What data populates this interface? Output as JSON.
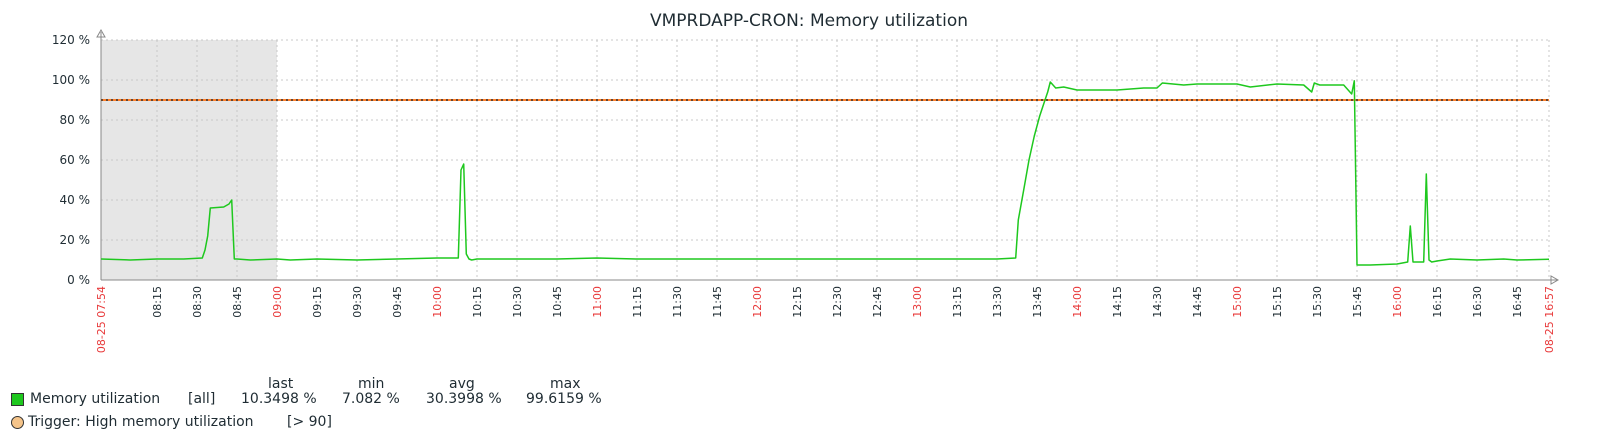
{
  "colors": {
    "series": "#1ec81e",
    "trigger_fill": "#f5c48a",
    "trigger_line": "#ff7f2a",
    "work_period_shade": "#e6e6e6",
    "grid": "#c8c8c8",
    "axis": "#888888",
    "tick_text": "#1f2c33",
    "highlight_tick": "#e8393a"
  },
  "chart_data": {
    "type": "line",
    "title": "VMPRDAPP-CRON: Memory utilization",
    "y_unit": "%",
    "ylim": [
      0,
      120
    ],
    "yticks": [
      0,
      20,
      40,
      60,
      80,
      100,
      120
    ],
    "ytick_labels": [
      "0 %",
      "20 %",
      "40 %",
      "60 %",
      "80 %",
      "100 %",
      "120 %"
    ],
    "xlim": [
      "07:54",
      "16:57"
    ],
    "x_start_label": "08-25 07:54",
    "x_end_label": "08-25 16:57",
    "xticks": [
      "08:15",
      "08:30",
      "08:45",
      "09:00",
      "09:15",
      "09:30",
      "09:45",
      "10:00",
      "10:15",
      "10:30",
      "10:45",
      "11:00",
      "11:15",
      "11:30",
      "11:45",
      "12:00",
      "12:15",
      "12:30",
      "12:45",
      "13:00",
      "13:15",
      "13:30",
      "13:45",
      "14:00",
      "14:15",
      "14:30",
      "14:45",
      "15:00",
      "15:15",
      "15:30",
      "15:45",
      "16:00",
      "16:15",
      "16:30",
      "16:45"
    ],
    "highlight_ticks": [
      "09:00",
      "10:00",
      "11:00",
      "12:00",
      "13:00",
      "14:00",
      "15:00",
      "16:00"
    ],
    "shaded_range": [
      "07:54",
      "09:00"
    ],
    "grid": true,
    "series": [
      {
        "name": "Memory utilization",
        "x": [
          "07:54",
          "08:05",
          "08:15",
          "08:25",
          "08:32",
          "08:33",
          "08:34",
          "08:35",
          "08:40",
          "08:42",
          "08:43",
          "08:44",
          "08:45",
          "08:50",
          "09:00",
          "09:05",
          "09:15",
          "09:30",
          "09:45",
          "10:00",
          "10:08",
          "10:09",
          "10:10",
          "10:11",
          "10:12",
          "10:13",
          "10:15",
          "10:30",
          "10:45",
          "11:00",
          "11:15",
          "11:30",
          "11:45",
          "12:00",
          "12:15",
          "12:30",
          "12:45",
          "13:00",
          "13:15",
          "13:30",
          "13:37",
          "13:38",
          "13:40",
          "13:42",
          "13:44",
          "13:46",
          "13:48",
          "13:49",
          "13:50",
          "13:52",
          "13:55",
          "14:00",
          "14:15",
          "14:25",
          "14:30",
          "14:32",
          "14:40",
          "14:45",
          "15:00",
          "15:05",
          "15:15",
          "15:25",
          "15:28",
          "15:29",
          "15:31",
          "15:40",
          "15:43",
          "15:44",
          "15:45",
          "15:46",
          "15:50",
          "16:00",
          "16:04",
          "16:05",
          "16:06",
          "16:07",
          "16:10",
          "16:11",
          "16:12",
          "16:13",
          "16:15",
          "16:20",
          "16:30",
          "16:40",
          "16:45",
          "16:57"
        ],
        "y": [
          10.5,
          10,
          10.5,
          10.5,
          11,
          15,
          22,
          36,
          36.5,
          38,
          40,
          10.5,
          10.5,
          10,
          10.5,
          10,
          10.5,
          10,
          10.5,
          11,
          11,
          55,
          58,
          13,
          10.5,
          10,
          10.5,
          10.5,
          10.5,
          11,
          10.5,
          10.5,
          10.5,
          10.5,
          10.5,
          10.5,
          10.5,
          10.5,
          10.5,
          10.5,
          11,
          30,
          45,
          60,
          72,
          82,
          90,
          94,
          99,
          96,
          96.5,
          95,
          95,
          96,
          96,
          98.5,
          97.5,
          98,
          98,
          96.5,
          98,
          97.5,
          94,
          98.5,
          97.5,
          97.5,
          93,
          99.6,
          7.5,
          7.5,
          7.5,
          8,
          9,
          27,
          9,
          9,
          9,
          53,
          10,
          9,
          9.5,
          10.5,
          10,
          10.5,
          10,
          10.35
        ]
      }
    ],
    "trigger": {
      "name": "Trigger: High memory utilization",
      "condition": "[> 90]",
      "threshold": 90
    },
    "legend": {
      "headers": [
        "last",
        "min",
        "avg",
        "max"
      ],
      "rows": [
        {
          "name": "Memory utilization",
          "func": "[all]",
          "last": "10.3498 %",
          "min": "7.082 %",
          "avg": "30.3998 %",
          "max": "99.6159 %"
        }
      ],
      "trigger_label": "Trigger: High memory utilization",
      "trigger_condition": "[> 90]"
    }
  }
}
